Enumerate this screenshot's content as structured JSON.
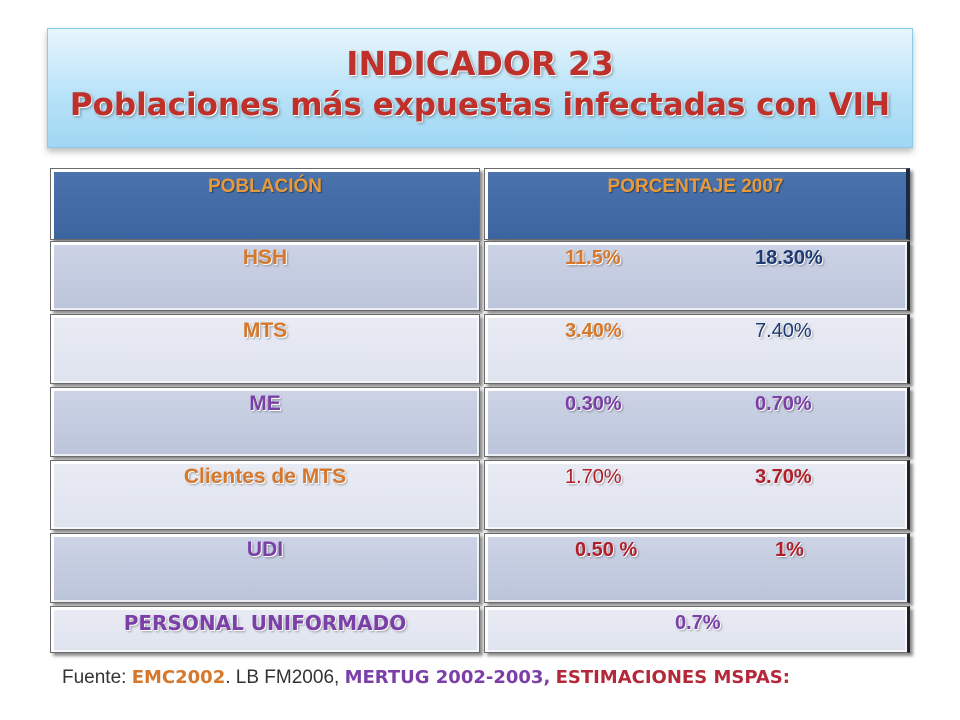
{
  "title": {
    "line1": "INDICADOR 23",
    "line2": "Poblaciones más expuestas infectadas con VIH"
  },
  "table": {
    "headers": [
      "POBLACIÓN",
      "PORCENTAJE 2007"
    ],
    "rows": [
      {
        "poblacion": "HSH",
        "pct1": "11.5%",
        "pct2": "18.30%"
      },
      {
        "poblacion": "MTS",
        "pct1": "3.40%",
        "pct2": "7.40%"
      },
      {
        "poblacion": "ME",
        "pct1": "0.30%",
        "pct2": "0.70%"
      },
      {
        "poblacion": "Clientes de MTS",
        "pct1": "1.70%",
        "pct2": "3.70%"
      },
      {
        "poblacion": "UDI",
        "pct1": "0.50 %",
        "pct2": "1%"
      },
      {
        "poblacion": "PERSONAL UNIFORMADO",
        "pct1": "0.7%"
      }
    ]
  },
  "source": {
    "prefix": "Fuente:  ",
    "s1": "EMC2002",
    "sep1": ".  LB FM2006, ",
    "s2": "MERTUG 2002-2003,",
    "sep2": " ",
    "s3": "ESTIMACIONES MSPAS:"
  },
  "colors": {
    "title": "#c0302a",
    "header_bg": "#4b74ad",
    "orange": "#d5782c",
    "purple": "#7b3fa8",
    "red": "#b01e2a",
    "navy": "#1e3a74"
  }
}
